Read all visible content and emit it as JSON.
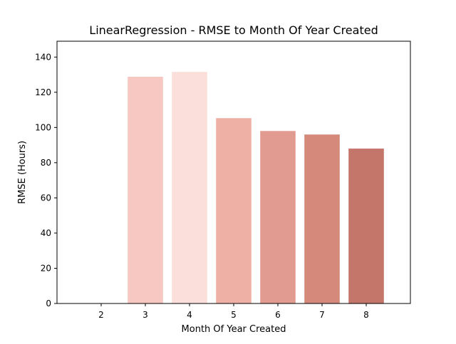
{
  "chart_data": {
    "type": "bar",
    "title": "LinearRegression - RMSE to Month Of Year Created",
    "xlabel": "Month Of Year Created",
    "ylabel": "RMSE (Hours)",
    "categories": [
      "2",
      "3",
      "4",
      "5",
      "6",
      "7",
      "8"
    ],
    "values": [
      0,
      128.8,
      131.6,
      105.3,
      98.0,
      96.0,
      88.0
    ],
    "bar_colors": [
      "#f6c8c1",
      "#f6c8c1",
      "#fadfda",
      "#eeb0a5",
      "#e19b90",
      "#d4897b",
      "#c4766a"
    ],
    "ylim": [
      0,
      149
    ],
    "yticks": [
      0,
      20,
      40,
      60,
      80,
      100,
      120,
      140
    ],
    "xlim": [
      1.0,
      9.0
    ],
    "grid": false,
    "legend": "none"
  }
}
